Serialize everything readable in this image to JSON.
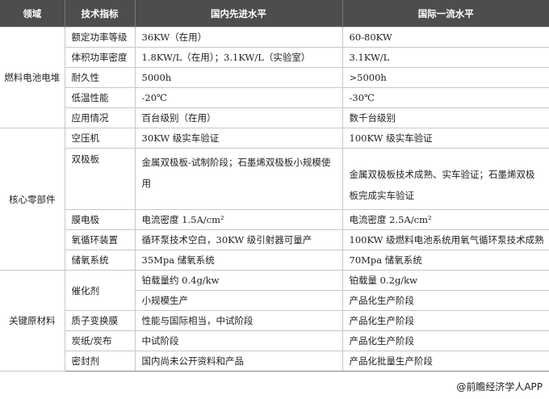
{
  "headers": [
    "领域",
    "技术指标",
    "国内先进水平",
    "国际一流水平"
  ],
  "groups": {
    "fuel": "燃料电池电堆",
    "core": "核心零部件",
    "material": "关键原材料"
  },
  "rows": [
    {
      "metric": "额定功率等级",
      "domestic": "36KW（在用）",
      "intl": "60-80KW"
    },
    {
      "metric": "体积功率密度",
      "domestic": "1.8KW/L（在用）；3.1KW/L（实验室）",
      "intl": "3.1KW/L"
    },
    {
      "metric": "耐久性",
      "domestic": "5000h",
      "intl": ">5000h"
    },
    {
      "metric": "低温性能",
      "domestic": "-20℃",
      "intl": "-30℃"
    },
    {
      "metric": "应用情况",
      "domestic": "百台级别（在用）",
      "intl": "数千台级别"
    },
    {
      "metric": "空压机",
      "domestic": "30KW 级实车验证",
      "intl": "100KW 级实车验证"
    },
    {
      "metric": "双极板",
      "domestic": "金属双极板-试制阶段；石墨烯双极板小规模使用",
      "intl": "金属双极板技术成熟、实车验证；石墨烯双极板完成实车验证"
    },
    {
      "metric": "膜电极",
      "domestic": "电流密度 1.5A/cm²",
      "intl": "电流密度 2.5A/cm²"
    },
    {
      "metric": "氧循环装置",
      "domestic": "循环泵技术空白，30KW 级引射器可量产",
      "intl": "100KW 级燃料电池系统用氧气循环泵技术成熟"
    },
    {
      "metric": "储氧系统",
      "domestic": "35Mpa 储氧系统",
      "intl": "70Mpa 储氧系统"
    },
    {
      "metric": "催化剂",
      "domestic": "铂载量约 0.4g/kw",
      "intl": "铂载量 0.2g/kw",
      "domestic2": "小规模生产",
      "intl2": "产品化生产阶段"
    },
    {
      "metric": "质子变换膜",
      "domestic": "性能与国际相当，中试阶段",
      "intl": "产品化生产阶段"
    },
    {
      "metric": "炭纸/炭布",
      "domestic": "中试阶段",
      "intl": "产品化生产阶段"
    },
    {
      "metric": "密封剂",
      "domestic": "国内尚未公开资料和产品",
      "intl": "产品化批量生产阶段"
    }
  ],
  "footer": "@前瞻经济学人APP"
}
